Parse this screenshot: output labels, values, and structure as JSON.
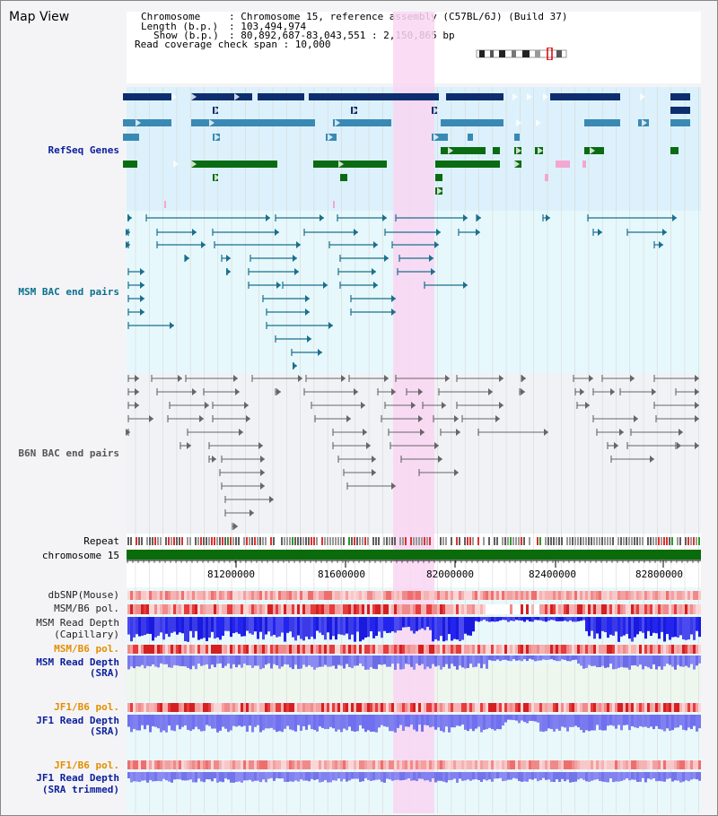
{
  "title": "Map View",
  "info": {
    "chromosome_key": "Chromosome",
    "chromosome_val": ": Chromosome 15, reference assembly (C57BL/6J) (Build 37)",
    "length_key": "Length (b.p.)",
    "length_val": ": 103,494,974",
    "show_key": "Show (b.p.)",
    "show_val": ": 80,892,687-83,043,551 : 2,150,865 bp",
    "span_line": "Read coverage check span : 10,000"
  },
  "tracks": {
    "refseq": "RefSeq Genes",
    "msm_bac": "MSM BAC end pairs",
    "b6n_bac": "B6N BAC end pairs",
    "repeat": "Repeat",
    "chromosome": "chromosome 15",
    "dbsnp": "dbSNP(Mouse)",
    "msm_b6_pol": "MSM/B6 pol.",
    "msm_read_depth_cap_1": "MSM Read Depth",
    "msm_read_depth_cap_2": "(Capillary)",
    "msm_b6_pol_2": "MSM/B6 pol.",
    "msm_read_depth_sra_1": "MSM Read Depth",
    "msm_read_depth_sra_2": "(SRA)",
    "jf1_b6_pol": "JF1/B6 pol.",
    "jf1_read_depth_sra_1": "JF1 Read Depth",
    "jf1_read_depth_sra_2": "(SRA)",
    "jf1_b6_pol_2": "JF1/B6 pol.",
    "jf1_read_depth_trim_1": "JF1 Read Depth",
    "jf1_read_depth_trim_2": "(SRA trimmed)"
  },
  "axis": {
    "ticks": [
      "81200000",
      "81600000",
      "82000000",
      "82400000",
      "82800000"
    ]
  },
  "colors": {
    "refseq_bg": "#dcf1fb",
    "msm_bg": "#e6f8fb",
    "b6n_bg": "#f0f2f6",
    "highlight": "#f9d6f2",
    "gene_dark": "#0d2e6e",
    "gene_mid": "#3a89b4",
    "gene_green": "#0b6b12",
    "bac_teal": "#1b6f8c",
    "bac_gray": "#666666",
    "chrom_green": "#0a6b0a",
    "depth_blue": "#1a1adf",
    "depth_light": "#7a7aef"
  }
}
